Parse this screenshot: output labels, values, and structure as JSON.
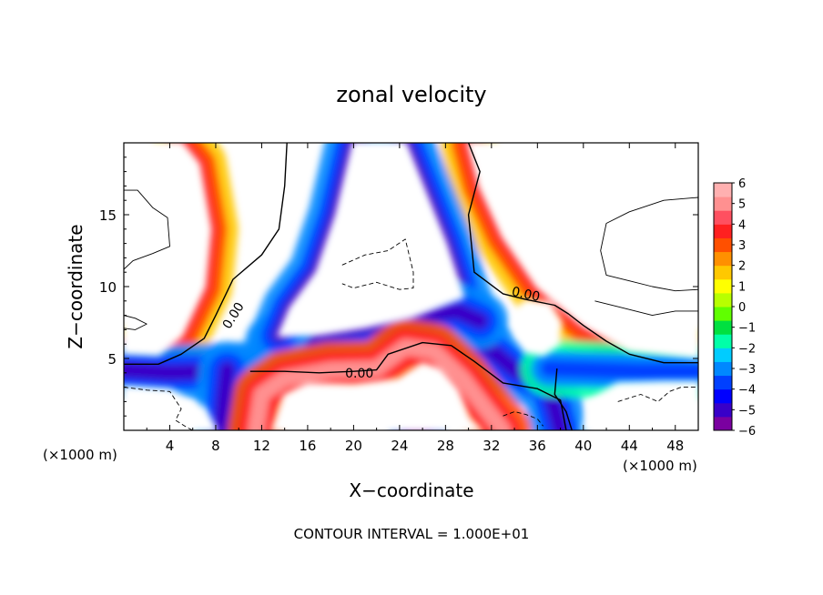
{
  "chart_data": {
    "type": "heatmap",
    "title": "zonal velocity",
    "xlabel": "X−coordinate",
    "ylabel": "Z−coordinate",
    "x_unit_left": "(×1000 m)",
    "x_unit_right": "(×1000 m)",
    "footer": "CONTOUR INTERVAL = 1.000E+01",
    "xlim": [
      0,
      50
    ],
    "ylim": [
      0,
      20
    ],
    "x_ticks": [
      4,
      8,
      12,
      16,
      20,
      24,
      28,
      32,
      36,
      40,
      44,
      48
    ],
    "x_tick_labels": [
      "4",
      "8",
      "12",
      "16",
      "20",
      "24",
      "28",
      "32",
      "36",
      "40",
      "44",
      "48"
    ],
    "y_ticks": [
      5,
      10,
      15
    ],
    "y_tick_labels": [
      "5",
      "10",
      "15"
    ],
    "contour_labels": [
      {
        "text": "0.00",
        "x": 9.5,
        "y": 8.0,
        "angle": -58
      },
      {
        "text": "0.00",
        "x": 20.5,
        "y": 4.0,
        "angle": 0
      },
      {
        "text": "0.00",
        "x": 35.0,
        "y": 9.5,
        "angle": 12
      }
    ],
    "colorbar": {
      "min": -6,
      "max": 6,
      "labels": [
        "6",
        "5",
        "4",
        "3",
        "2",
        "1",
        "0",
        "−1",
        "−2",
        "−3",
        "−4",
        "−5",
        "−6"
      ],
      "label_values": [
        6,
        5,
        4,
        3,
        2,
        1,
        0,
        -1,
        -2,
        -3,
        -4,
        -5,
        -6
      ],
      "colors": [
        "#7a00a0",
        "#3800c8",
        "#0000ff",
        "#0040ff",
        "#0088ff",
        "#00ccff",
        "#00ffa8",
        "#00e040",
        "#60ff00",
        "#b8ff00",
        "#ffff00",
        "#ffc800",
        "#ff9000",
        "#ff5000",
        "#ff2020",
        "#ff5060",
        "#ff9090",
        "#ffb0b0"
      ]
    },
    "features": [
      {
        "name": "warm-plume-left-upper",
        "polyline": [
          [
            0,
            5.4
          ],
          [
            3,
            5.3
          ],
          [
            5,
            6.6
          ],
          [
            7,
            10
          ],
          [
            7.5,
            14
          ],
          [
            6.5,
            18.5
          ],
          [
            5,
            20
          ]
        ],
        "value": 4
      },
      {
        "name": "warm-plume-right-upper",
        "polyline": [
          [
            50,
            5.1
          ],
          [
            44,
            5.6
          ],
          [
            40,
            7.3
          ],
          [
            36,
            10
          ],
          [
            33,
            13.5
          ],
          [
            31,
            17
          ],
          [
            30,
            20
          ]
        ],
        "value": 4
      },
      {
        "name": "cold-shaft-center",
        "polyline": [
          [
            38,
            0
          ],
          [
            37,
            3
          ],
          [
            34,
            4.2
          ],
          [
            31,
            6.2
          ],
          [
            29.5,
            9.3
          ],
          [
            28,
            13
          ],
          [
            26,
            17
          ],
          [
            24.5,
            20
          ]
        ],
        "value": -5
      },
      {
        "name": "cold-layer-lower-left",
        "polyline": [
          [
            0,
            4.2
          ],
          [
            4,
            4.0
          ],
          [
            8,
            4.1
          ],
          [
            11,
            4.2
          ]
        ],
        "value": -5
      },
      {
        "name": "cold-arm-center",
        "polyline": [
          [
            13,
            6.1
          ],
          [
            17,
            6.7
          ],
          [
            21,
            7.2
          ],
          [
            25,
            7.9
          ],
          [
            29,
            8.3
          ],
          [
            31,
            7.6
          ]
        ],
        "value": -5
      },
      {
        "name": "cold-lobe-upper-left",
        "polyline": [
          [
            20,
            20
          ],
          [
            18.5,
            15
          ],
          [
            16.8,
            11
          ],
          [
            14.5,
            8.5
          ],
          [
            13.5,
            6.6
          ]
        ],
        "value": -5
      },
      {
        "name": "cold-layer-lower-right",
        "polyline": [
          [
            37,
            4.3
          ],
          [
            41,
            4.2
          ],
          [
            45,
            4.1
          ],
          [
            50,
            4.1
          ]
        ],
        "value": -4
      },
      {
        "name": "cold-dip-left",
        "polyline": [
          [
            8.5,
            0
          ],
          [
            8.7,
            2
          ],
          [
            9,
            4.2
          ]
        ],
        "value": -5
      },
      {
        "name": "warm-layer-lower",
        "polyline": [
          [
            11.5,
            0
          ],
          [
            12,
            2.5
          ],
          [
            14,
            3.6
          ],
          [
            18,
            4.2
          ],
          [
            22,
            4.3
          ],
          [
            24.5,
            5.8
          ],
          [
            27,
            5.5
          ],
          [
            29.5,
            3.6
          ],
          [
            31.5,
            1.5
          ],
          [
            33,
            0
          ]
        ],
        "value": 5
      },
      {
        "name": "cold-cell-bottom",
        "polyline": [
          [
            25.5,
            0
          ],
          [
            25.7,
            0.5
          ]
        ],
        "value": -6
      }
    ],
    "neutral_regions": [
      {
        "name": "neutral-region-upper-left",
        "points": [
          [
            0,
            20
          ],
          [
            5,
            20
          ],
          [
            6.5,
            18.5
          ],
          [
            7.5,
            14
          ],
          [
            7,
            10
          ],
          [
            5,
            6.6
          ],
          [
            3,
            5.3
          ],
          [
            0,
            5.4
          ]
        ]
      },
      {
        "name": "neutral-region-center",
        "points": [
          [
            20,
            20
          ],
          [
            24.5,
            20
          ],
          [
            26,
            17
          ],
          [
            28,
            13
          ],
          [
            29.5,
            9.3
          ],
          [
            25,
            7.9
          ],
          [
            21,
            7.2
          ],
          [
            17,
            6.7
          ],
          [
            13.5,
            6.6
          ],
          [
            14.5,
            8.5
          ],
          [
            16.8,
            11
          ],
          [
            18.5,
            15
          ]
        ]
      },
      {
        "name": "neutral-region-right",
        "points": [
          [
            30,
            20
          ],
          [
            50,
            20
          ],
          [
            50,
            5.1
          ],
          [
            44,
            5.6
          ],
          [
            40,
            7.3
          ],
          [
            36,
            10
          ],
          [
            33,
            13.5
          ],
          [
            31,
            17
          ]
        ]
      },
      {
        "name": "neutral-region-bubble",
        "points": [
          [
            35,
            9
          ],
          [
            37,
            8.8
          ],
          [
            38,
            7.5
          ],
          [
            37.7,
            6
          ],
          [
            36.5,
            5.3
          ],
          [
            35,
            5.5
          ],
          [
            34,
            6.6
          ],
          [
            34,
            8.2
          ]
        ]
      },
      {
        "name": "neutral-region-lower-center",
        "points": [
          [
            13,
            0
          ],
          [
            14,
            2.4
          ],
          [
            16,
            3.2
          ],
          [
            20,
            3.1
          ],
          [
            24,
            3.5
          ],
          [
            26,
            4.6
          ],
          [
            27.5,
            4.2
          ],
          [
            29,
            2.8
          ],
          [
            30,
            0.8
          ],
          [
            31,
            0
          ]
        ]
      },
      {
        "name": "neutral-region-lower-left",
        "points": [
          [
            0,
            0
          ],
          [
            0,
            3
          ],
          [
            4,
            2.8
          ],
          [
            7,
            1.5
          ],
          [
            8,
            0
          ]
        ]
      },
      {
        "name": "neutral-region-lower-right",
        "points": [
          [
            40,
            0
          ],
          [
            40.5,
            2
          ],
          [
            43,
            3.2
          ],
          [
            47,
            3.3
          ],
          [
            50,
            3.3
          ],
          [
            50,
            0
          ]
        ]
      }
    ],
    "contours": [
      {
        "name": "zero-contour-left",
        "style": "solid",
        "points": [
          [
            0,
            4.6
          ],
          [
            3,
            4.6
          ],
          [
            5,
            5.3
          ],
          [
            7,
            6.4
          ],
          [
            8,
            8.0
          ],
          [
            9.5,
            10.5
          ],
          [
            12,
            12.2
          ],
          [
            13.5,
            14
          ],
          [
            14.0,
            17
          ],
          [
            14.2,
            20
          ]
        ]
      },
      {
        "name": "zero-contour-center",
        "style": "solid",
        "points": [
          [
            11,
            4.1
          ],
          [
            14,
            4.1
          ],
          [
            17,
            4.0
          ],
          [
            20,
            4.1
          ],
          [
            22,
            4.2
          ],
          [
            23,
            5.3
          ],
          [
            26,
            6.1
          ],
          [
            28.5,
            5.9
          ],
          [
            30.5,
            4.8
          ],
          [
            33,
            3.3
          ],
          [
            36,
            2.9
          ],
          [
            38,
            2.1
          ],
          [
            38.5,
            0
          ]
        ]
      },
      {
        "name": "zero-contour-right",
        "style": "solid",
        "points": [
          [
            30,
            20
          ],
          [
            31,
            18
          ],
          [
            30,
            15
          ],
          [
            30.5,
            11
          ],
          [
            33,
            9.5
          ],
          [
            35,
            9.1
          ],
          [
            37.5,
            8.7
          ],
          [
            38.7,
            8.1
          ],
          [
            40,
            7.3
          ],
          [
            42,
            6.2
          ],
          [
            44,
            5.3
          ],
          [
            47,
            4.7
          ],
          [
            50,
            4.7
          ]
        ]
      },
      {
        "name": "zero-contour-lower-right",
        "style": "solid",
        "points": [
          [
            39,
            0
          ],
          [
            38.5,
            1.3
          ],
          [
            37.5,
            2.5
          ],
          [
            37.7,
            4.3
          ]
        ]
      },
      {
        "name": "zero-contour-upper-left-box",
        "style": "thin",
        "points": [
          [
            0,
            16.7
          ],
          [
            1.2,
            16.7
          ],
          [
            2.5,
            15.5
          ],
          [
            3.8,
            14.8
          ],
          [
            4.0,
            12.8
          ],
          [
            2.5,
            12.3
          ],
          [
            0.8,
            11.8
          ],
          [
            0,
            11.2
          ]
        ]
      },
      {
        "name": "zero-contour-small-left",
        "style": "thin",
        "points": [
          [
            0,
            8.0
          ],
          [
            1,
            7.8
          ],
          [
            2,
            7.4
          ],
          [
            1,
            7.0
          ],
          [
            0,
            7.1
          ]
        ]
      },
      {
        "name": "zero-contour-upper-right-box",
        "style": "thin",
        "points": [
          [
            50,
            16.2
          ],
          [
            47,
            16.0
          ],
          [
            44,
            15.2
          ],
          [
            42,
            14.4
          ],
          [
            41.5,
            12.5
          ],
          [
            42,
            10.8
          ],
          [
            44,
            10.4
          ],
          [
            46,
            10.0
          ],
          [
            48,
            9.7
          ],
          [
            50,
            9.8
          ]
        ]
      },
      {
        "name": "zero-contour-right-mid",
        "style": "thin",
        "points": [
          [
            50,
            8.3
          ],
          [
            48,
            8.3
          ],
          [
            46,
            8.0
          ],
          [
            43,
            8.6
          ],
          [
            41,
            9.0
          ]
        ]
      },
      {
        "name": "neg-contour-center",
        "style": "dashed",
        "points": [
          [
            19,
            11.5
          ],
          [
            21,
            12.2
          ],
          [
            23,
            12.5
          ],
          [
            24.5,
            13.3
          ],
          [
            25.2,
            11.0
          ],
          [
            25.2,
            9.9
          ],
          [
            24,
            9.8
          ],
          [
            22,
            10.3
          ],
          [
            20,
            9.9
          ],
          [
            19,
            10.2
          ]
        ]
      },
      {
        "name": "neg-contour-lower-left",
        "style": "dashed",
        "points": [
          [
            0,
            3.0
          ],
          [
            2,
            2.8
          ],
          [
            4,
            2.7
          ],
          [
            5,
            1.5
          ],
          [
            4.5,
            0.7
          ],
          [
            5.5,
            0.2
          ],
          [
            6,
            0
          ]
        ]
      },
      {
        "name": "neg-contour-lower-right",
        "style": "dashed",
        "points": [
          [
            43,
            2.0
          ],
          [
            45,
            2.5
          ],
          [
            46.5,
            2.0
          ],
          [
            47.5,
            2.7
          ],
          [
            48.5,
            3.0
          ],
          [
            50,
            3.0
          ]
        ]
      },
      {
        "name": "neg-contour-lower-center",
        "style": "dashed",
        "points": [
          [
            33,
            1.0
          ],
          [
            34,
            1.3
          ],
          [
            35,
            1.1
          ],
          [
            36,
            0.8
          ],
          [
            36.5,
            0.3
          ]
        ]
      }
    ]
  }
}
